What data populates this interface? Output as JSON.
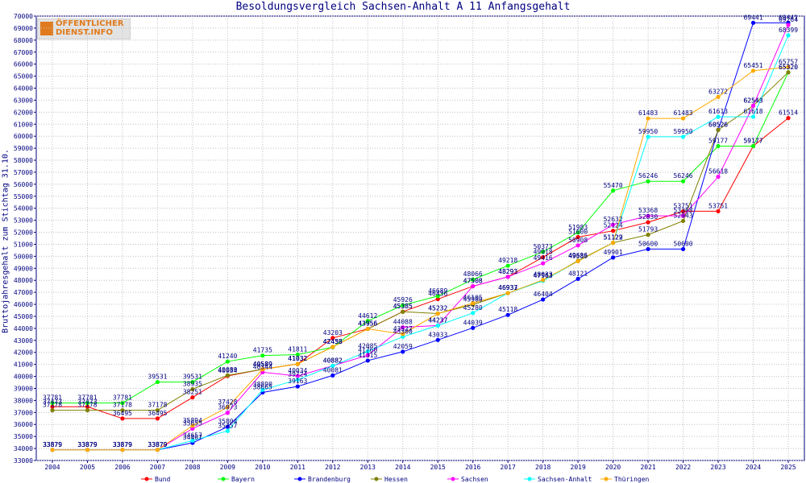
{
  "logo": {
    "line1": "ÖFFENTLICHER",
    "line2": "DIENST.INFO"
  },
  "chart_data": {
    "type": "line",
    "title": "Besoldungsvergleich Sachsen-Anhalt A 11 Anfangsgehalt",
    "xlabel": "",
    "ylabel": "Bruttojahresgehalt zum Stichtag 31.10.",
    "ylim": [
      33000,
      70000
    ],
    "ystep": 1000,
    "grid": true,
    "legend_position": "bottom",
    "x": [
      2004,
      2005,
      2006,
      2007,
      2008,
      2009,
      2010,
      2011,
      2012,
      2013,
      2014,
      2015,
      2016,
      2017,
      2018,
      2019,
      2020,
      2021,
      2022,
      2023,
      2024,
      2025
    ],
    "series": [
      {
        "name": "Bund",
        "color": "#ff0000",
        "values": [
          37473,
          37473,
          36495,
          36495,
          38251,
          40034,
          40589,
          41032,
          43203,
          43956,
          45385,
          46436,
          47508,
          48293,
          49918,
          51600,
          52124,
          52830,
          53751,
          53751,
          59177,
          61514
        ]
      },
      {
        "name": "Bayern",
        "color": "#00ff00",
        "values": [
          37781,
          37781,
          37781,
          39531,
          39531,
          41240,
          41735,
          41811,
          42436,
          44612,
          45926,
          46689,
          48066,
          49218,
          50373,
          51983,
          55470,
          56246,
          56246,
          59177,
          59177,
          65320
        ]
      },
      {
        "name": "Brandenburg",
        "color": "#0000ff",
        "values": [
          33879,
          33879,
          33879,
          33879,
          34467,
          35804,
          38665,
          39163,
          40081,
          41315,
          42059,
          43033,
          44039,
          45118,
          46404,
          48121,
          49901,
          50600,
          50600,
          60526,
          69441,
          69441
        ]
      },
      {
        "name": "Hessen",
        "color": "#808000",
        "values": [
          37178,
          37178,
          37178,
          37178,
          38935,
          40089,
          40589,
          41032,
          42453,
          43956,
          45385,
          45232,
          45980,
          46933,
          47963,
          49636,
          51129,
          51793,
          52943,
          60526,
          62543,
          65320
        ]
      },
      {
        "name": "Sachsen",
        "color": "#ff00ff",
        "values": [
          33879,
          33879,
          33879,
          33879,
          35655,
          36973,
          40344,
          40034,
          40882,
          41760,
          44088,
          44237,
          47508,
          48293,
          49416,
          50908,
          52632,
          53368,
          53368,
          56618,
          62543,
          69264
        ]
      },
      {
        "name": "Sachsen-Anhalt",
        "color": "#00ffff",
        "values": [
          33879,
          33879,
          33879,
          33879,
          34657,
          35457,
          38890,
          39724,
          40882,
          42085,
          43300,
          44237,
          45280,
          46937,
          47963,
          49585,
          51122,
          59950,
          59950,
          61613,
          61618,
          68399
        ]
      },
      {
        "name": "Thüringen",
        "color": "#ffaa00",
        "values": [
          33879,
          33879,
          33879,
          33879,
          35894,
          37428,
          40589,
          41032,
          42453,
          43956,
          43527,
          45232,
          46105,
          46937,
          48033,
          49585,
          51122,
          61483,
          61483,
          63272,
          65451,
          65757
        ]
      }
    ]
  }
}
